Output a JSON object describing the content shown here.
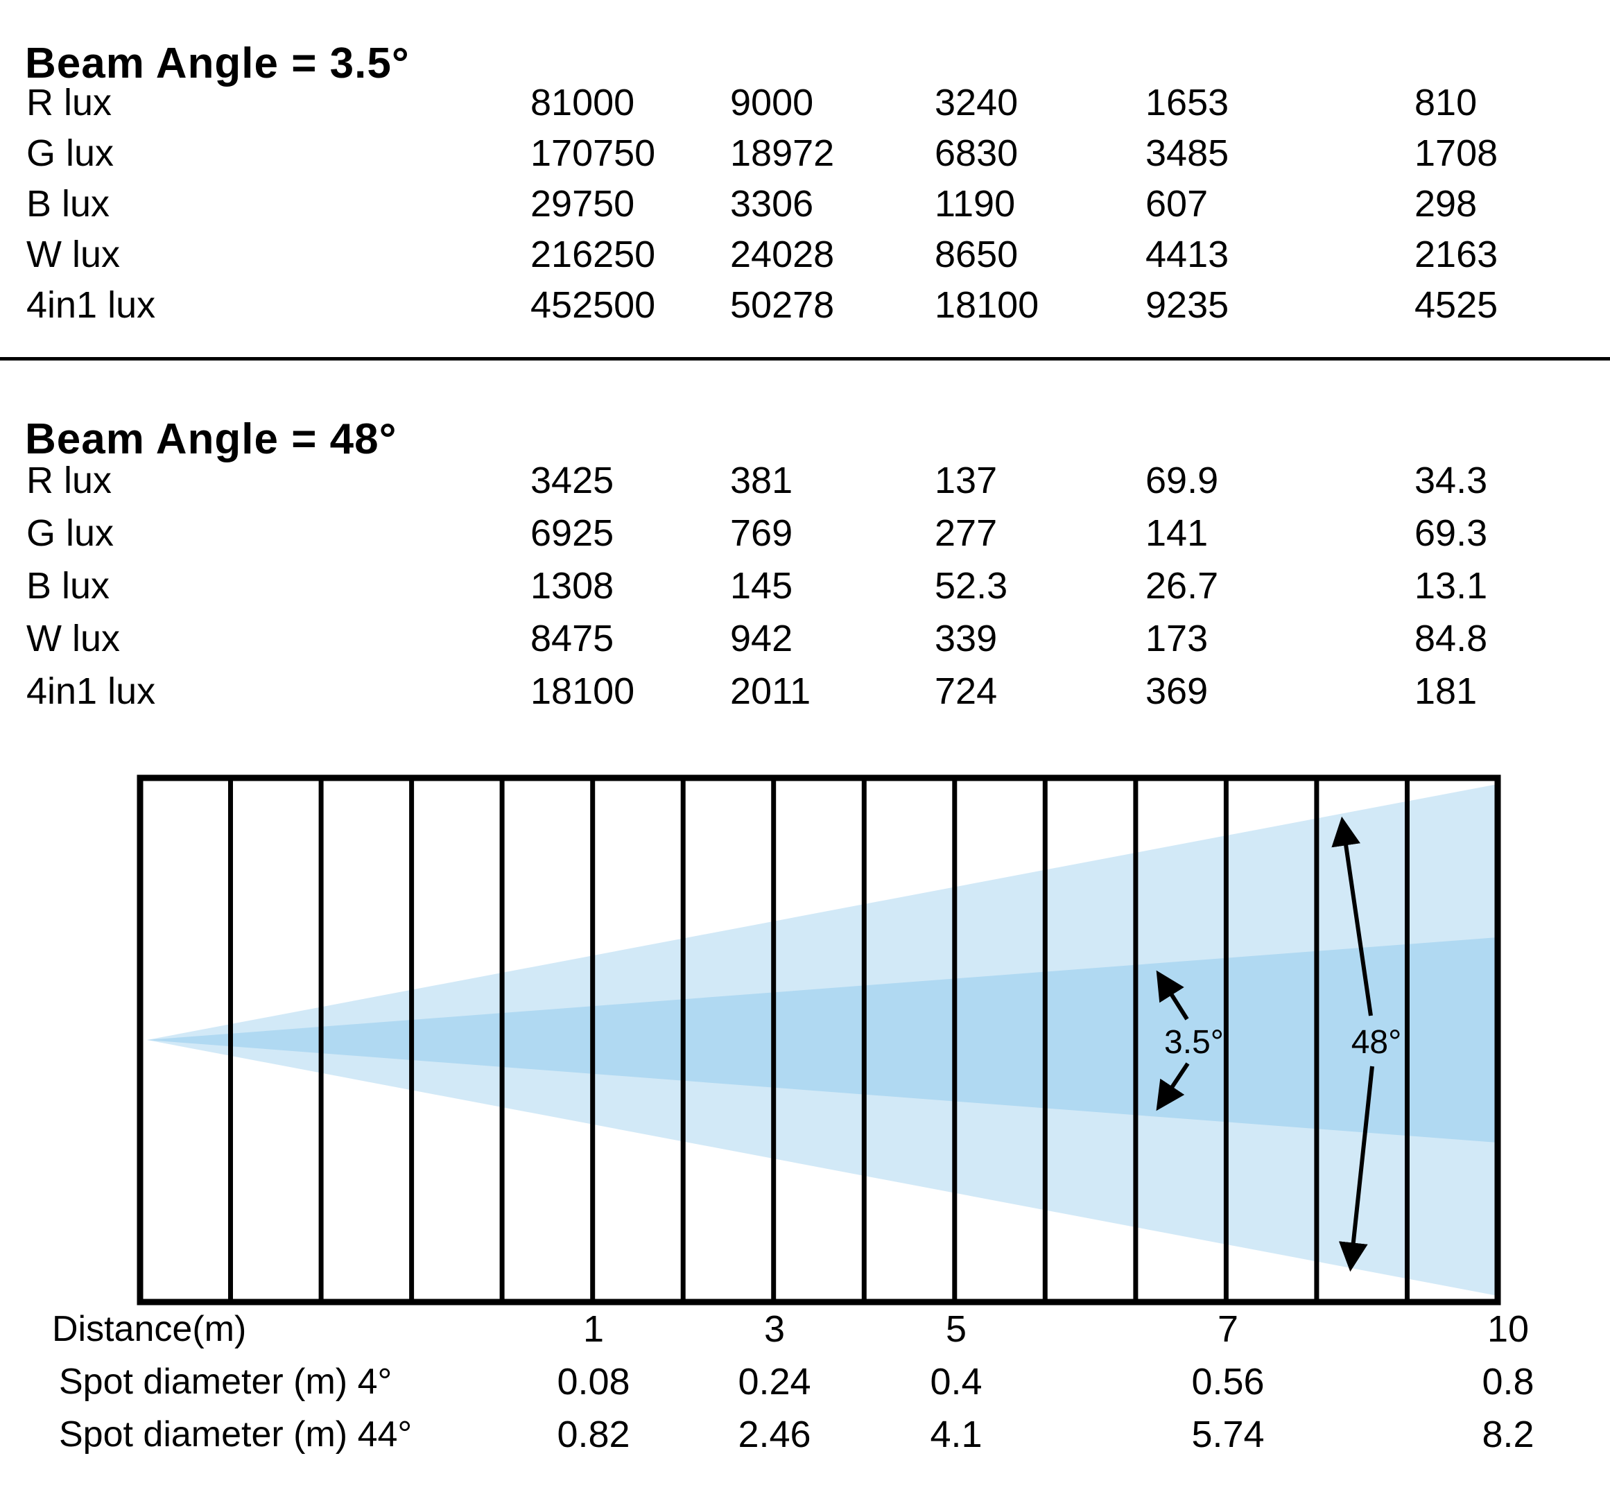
{
  "tables": [
    {
      "title": "Beam Angle = 3.5°",
      "rows": [
        {
          "label": "R lux",
          "values": [
            "81000",
            "9000",
            "3240",
            "1653",
            "810"
          ]
        },
        {
          "label": "G lux",
          "values": [
            "170750",
            "18972",
            "6830",
            "3485",
            "1708"
          ]
        },
        {
          "label": "B lux",
          "values": [
            "29750",
            "3306",
            "1190",
            "607",
            "298"
          ]
        },
        {
          "label": "W lux",
          "values": [
            "216250",
            "24028",
            "8650",
            "4413",
            "2163"
          ]
        },
        {
          "label": "4in1 lux",
          "values": [
            "452500",
            "50278",
            "18100",
            "9235",
            "4525"
          ]
        }
      ]
    },
    {
      "title": "Beam Angle = 48°",
      "rows": [
        {
          "label": "R lux",
          "values": [
            "3425",
            "381",
            "137",
            "69.9",
            "34.3"
          ]
        },
        {
          "label": "G lux",
          "values": [
            "6925",
            "769",
            "277",
            "141",
            "69.3"
          ]
        },
        {
          "label": "B lux",
          "values": [
            "1308",
            "145",
            "52.3",
            "26.7",
            "13.1"
          ]
        },
        {
          "label": "W lux",
          "values": [
            "8475",
            "942",
            "339",
            "173",
            "84.8"
          ]
        },
        {
          "label": "4in1 lux",
          "values": [
            "18100",
            "2011",
            "724",
            "369",
            "181"
          ]
        }
      ]
    }
  ],
  "diagram": {
    "narrow_angle_label": "3.5°",
    "wide_angle_label": "48°",
    "colors": {
      "wide_cone": "#d2e9f7",
      "narrow_cone": "#b0d9f2",
      "line": "#000000"
    }
  },
  "axis": {
    "distance_label": "Distance(m)",
    "distances": [
      "1",
      "3",
      "5",
      "7",
      "10"
    ],
    "spot4_label": "Spot diameter (m) 4°",
    "spot4_values": [
      "0.08",
      "0.24",
      "0.4",
      "0.56",
      "0.8"
    ],
    "spot44_label": "Spot diameter (m) 44°",
    "spot44_values": [
      "0.82",
      "2.46",
      "4.1",
      "5.74",
      "8.2"
    ]
  },
  "chart_data": [
    {
      "type": "table",
      "title": "Beam Angle = 3.5°",
      "xlabel": "Distance(m)",
      "x": [
        1,
        3,
        5,
        7,
        10
      ],
      "series": [
        {
          "name": "R lux",
          "values": [
            81000,
            9000,
            3240,
            1653,
            810
          ]
        },
        {
          "name": "G lux",
          "values": [
            170750,
            18972,
            6830,
            3485,
            1708
          ]
        },
        {
          "name": "B lux",
          "values": [
            29750,
            3306,
            1190,
            607,
            298
          ]
        },
        {
          "name": "W lux",
          "values": [
            216250,
            24028,
            8650,
            4413,
            2163
          ]
        },
        {
          "name": "4in1 lux",
          "values": [
            452500,
            50278,
            18100,
            9235,
            4525
          ]
        }
      ]
    },
    {
      "type": "table",
      "title": "Beam Angle = 48°",
      "xlabel": "Distance(m)",
      "x": [
        1,
        3,
        5,
        7,
        10
      ],
      "series": [
        {
          "name": "R lux",
          "values": [
            3425,
            381,
            137,
            69.9,
            34.3
          ]
        },
        {
          "name": "G lux",
          "values": [
            6925,
            769,
            277,
            141,
            69.3
          ]
        },
        {
          "name": "B lux",
          "values": [
            1308,
            145,
            52.3,
            26.7,
            13.1
          ]
        },
        {
          "name": "W lux",
          "values": [
            8475,
            942,
            339,
            173,
            84.8
          ]
        },
        {
          "name": "4in1 lux",
          "values": [
            18100,
            2011,
            724,
            369,
            181
          ]
        }
      ]
    },
    {
      "type": "table",
      "title": "Spot diameter vs distance",
      "xlabel": "Distance(m)",
      "x": [
        1,
        3,
        5,
        7,
        10
      ],
      "series": [
        {
          "name": "Spot diameter (m) 4°",
          "values": [
            0.08,
            0.24,
            0.4,
            0.56,
            0.8
          ]
        },
        {
          "name": "Spot diameter (m) 44°",
          "values": [
            0.82,
            2.46,
            4.1,
            5.74,
            8.2
          ]
        }
      ]
    }
  ]
}
